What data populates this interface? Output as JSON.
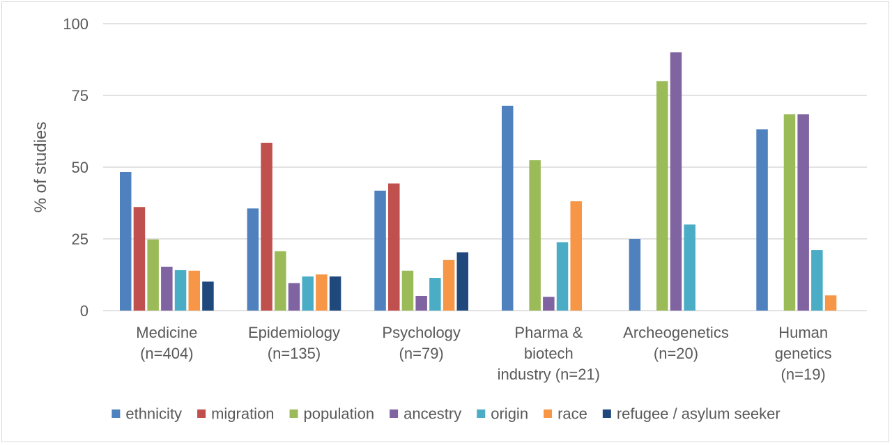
{
  "chart_data": {
    "type": "bar",
    "title": "",
    "xlabel": "",
    "ylabel": "% of studies",
    "ylim": [
      0,
      100
    ],
    "yticks": [
      "0",
      "25",
      "50",
      "75",
      "100"
    ],
    "grid": true,
    "legend_position": "bottom",
    "categories": [
      [
        "Medicine",
        "(n=404)"
      ],
      [
        "Epidemiology",
        "(n=135)"
      ],
      [
        "Psychology",
        "(n=79)"
      ],
      [
        "Pharma &",
        "biotech",
        "industry (n=21)"
      ],
      [
        "Archeogenetics",
        "(n=20)"
      ],
      [
        "Human",
        "genetics",
        "(n=19)"
      ]
    ],
    "series": [
      {
        "name": "ethnicity",
        "color": "#4e81bd",
        "values": [
          48.3,
          35.6,
          41.8,
          71.4,
          25.0,
          63.2
        ]
      },
      {
        "name": "migration",
        "color": "#c0504d",
        "values": [
          36.1,
          58.5,
          44.3,
          0,
          0,
          0
        ]
      },
      {
        "name": "population",
        "color": "#9bbb59",
        "values": [
          24.8,
          20.7,
          13.9,
          52.4,
          80.0,
          68.4
        ]
      },
      {
        "name": "ancestry",
        "color": "#8064a2",
        "values": [
          15.3,
          9.6,
          5.1,
          4.8,
          90.0,
          68.4
        ]
      },
      {
        "name": "origin",
        "color": "#4bacc6",
        "values": [
          14.1,
          11.9,
          11.4,
          23.8,
          30.0,
          21.1
        ]
      },
      {
        "name": "race",
        "color": "#f79646",
        "values": [
          13.9,
          12.6,
          17.7,
          38.1,
          0,
          5.3
        ]
      },
      {
        "name": "refugee / asylum seeker",
        "color": "#1f497d",
        "values": [
          10.1,
          11.9,
          20.3,
          0,
          0,
          0
        ]
      }
    ]
  }
}
